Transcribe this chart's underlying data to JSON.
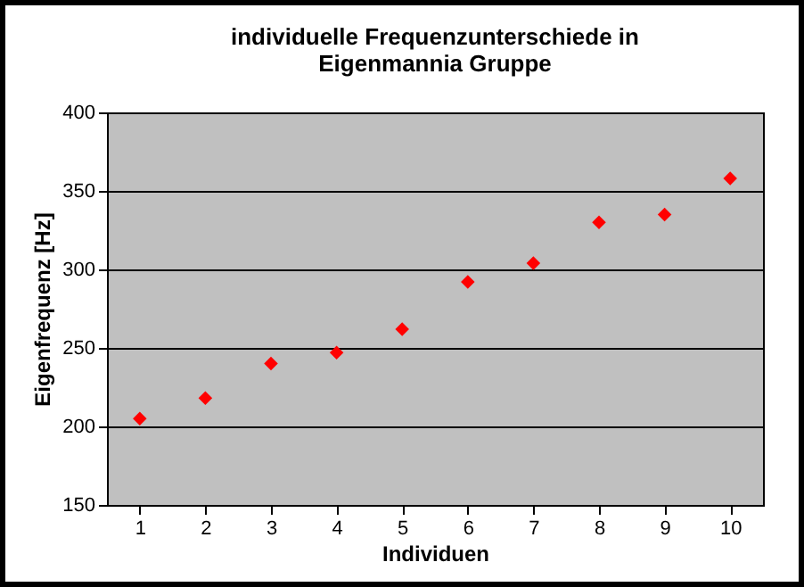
{
  "chart_data": {
    "type": "scatter",
    "title": "individuelle Frequenzunterschiede in\nEigenmannia Gruppe",
    "xlabel": "Individuen",
    "ylabel": "Eigenfrequenz [Hz]",
    "categories": [
      "1",
      "2",
      "3",
      "4",
      "5",
      "6",
      "7",
      "8",
      "9",
      "10"
    ],
    "series": [
      {
        "color": "#ff0000",
        "values": [
          205,
          218,
          240,
          247,
          262,
          292,
          304,
          330,
          335,
          358
        ]
      }
    ],
    "ylim": [
      150,
      400
    ],
    "yticks": [
      150,
      200,
      250,
      300,
      350,
      400
    ],
    "grid": "y",
    "marker": "diamond"
  }
}
